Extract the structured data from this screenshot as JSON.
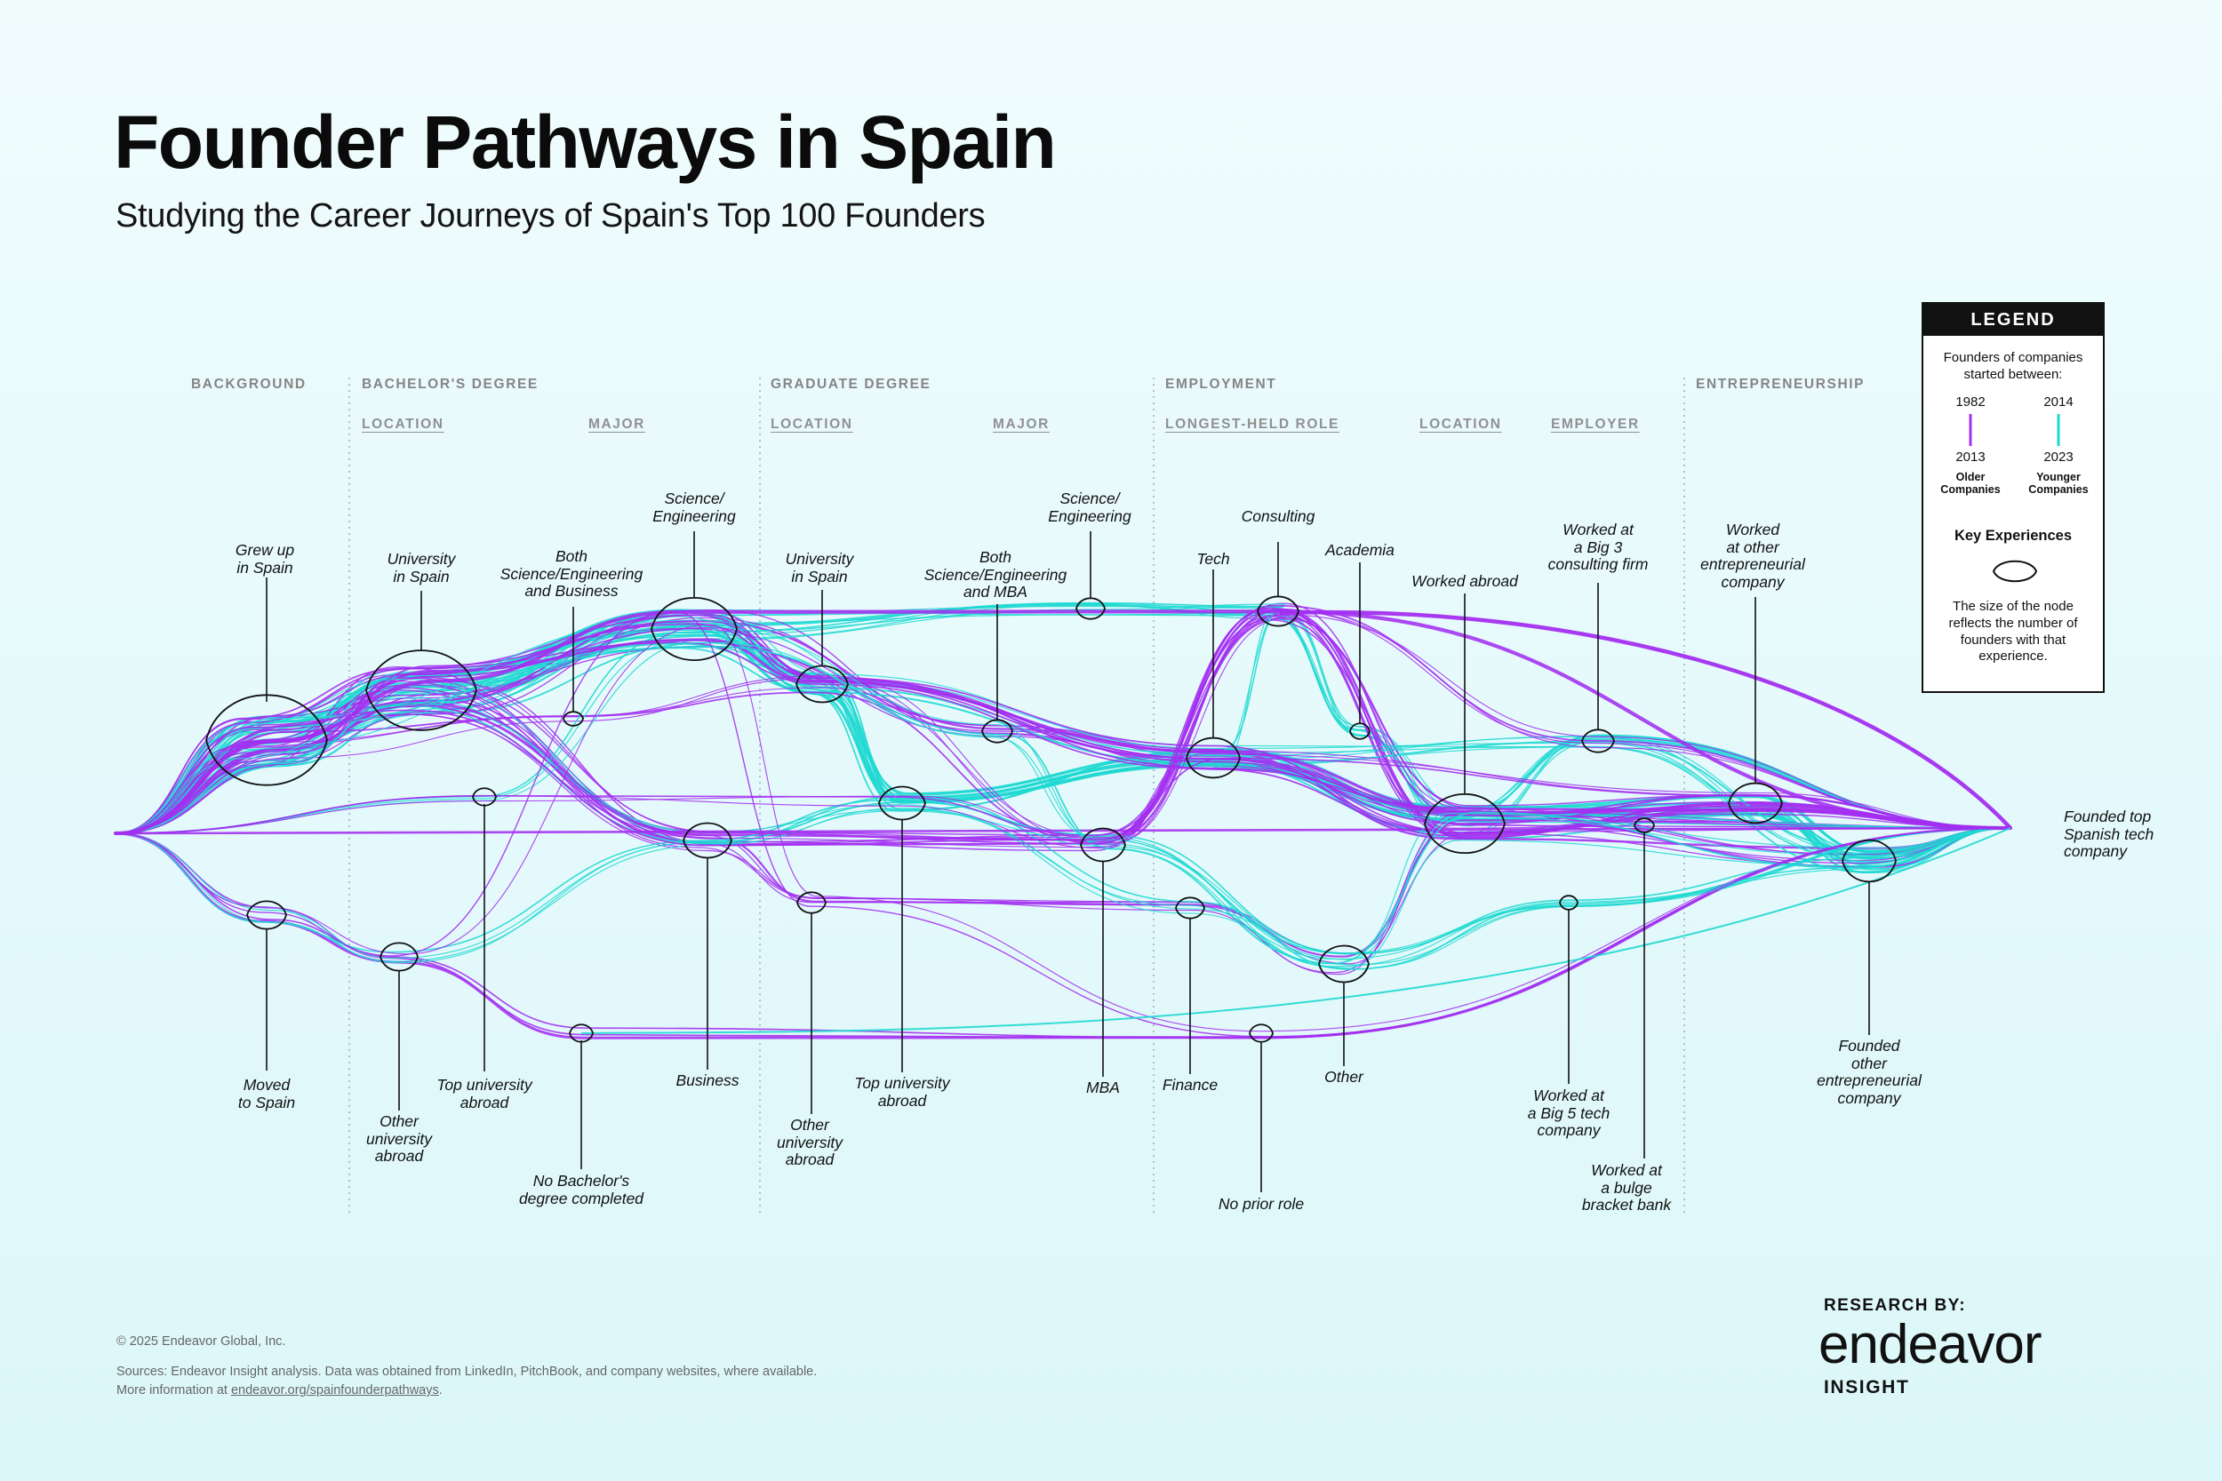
{
  "title": "Founder Pathways in Spain",
  "subtitle": "Studying the Career Journeys of Spain's Top 100 Founders",
  "colors": {
    "older": "#a32ff0",
    "younger": "#1fd8d2",
    "node_stroke": "#111111",
    "divider": "#9fb4bb"
  },
  "stages": {
    "background": "BACKGROUND",
    "bachelors": "BACHELOR'S DEGREE",
    "graduate": "GRADUATE DEGREE",
    "employment": "EMPLOYMENT",
    "entrepreneurship": "ENTREPRENEURSHIP"
  },
  "substages": {
    "bach_location": "LOCATION",
    "bach_major": "MAJOR",
    "grad_location": "LOCATION",
    "grad_major": "MAJOR",
    "emp_role": "LONGEST-HELD ROLE",
    "emp_location": "LOCATION",
    "emp_employer": "EMPLOYER"
  },
  "nodes": {
    "grew_up_spain": "Grew up\nin Spain",
    "moved_to_spain": "Moved\nto Spain",
    "bach_university_spain": "University\nin Spain",
    "bach_top_abroad": "Top university\nabroad",
    "bach_other_abroad": "Other\nuniversity\nabroad",
    "no_bachelors": "No Bachelor's\ndegree completed",
    "bach_both": "Both\nScience/Engineering\nand Business",
    "bach_science": "Science/\nEngineering",
    "bach_business": "Business",
    "grad_university_spain": "University\nin Spain",
    "grad_top_abroad": "Top university\nabroad",
    "grad_other_abroad": "Other\nuniversity\nabroad",
    "grad_both": "Both\nScience/Engineering\nand MBA",
    "grad_science": "Science/\nEngineering",
    "grad_mba": "MBA",
    "role_tech": "Tech",
    "role_consulting": "Consulting",
    "role_academia": "Academia",
    "role_finance": "Finance",
    "role_other": "Other",
    "role_none": "No prior role",
    "worked_abroad": "Worked abroad",
    "big3": "Worked at\na Big 3\nconsulting firm",
    "big5": "Worked at\na Big 5 tech\ncompany",
    "bulge": "Worked at\na bulge\nbracket bank",
    "other_entre_worked": "Worked\nat other\nentrepreneurial\ncompany",
    "founded_other": "Founded\nother\nentrepreneurial\ncompany",
    "founded_top": "Founded top\nSpanish tech\ncompany"
  },
  "legend": {
    "header": "LEGEND",
    "intro": "Founders of companies started between:",
    "older_start": "1982",
    "older_end": "2013",
    "older_label": "Older\nCompanies",
    "younger_start": "2014",
    "younger_end": "2023",
    "younger_label": "Younger\nCompanies",
    "key_title": "Key Experiences",
    "key_desc": "The size of the node reflects the number of founders with that experience."
  },
  "footer": {
    "copyright": "© 2025 Endeavor Global, Inc.",
    "sources_line1": "Sources:  Endeavor Insight analysis. Data was obtained from LinkedIn, PitchBook, and company websites, where available.",
    "sources_line2_prefix": "More information at ",
    "sources_link": "endeavor.org/spainfounderpathways",
    "sources_line2_suffix": "."
  },
  "brand": {
    "research_by": "RESEARCH BY:",
    "name": "endeavor",
    "sub": "INSIGHT"
  }
}
